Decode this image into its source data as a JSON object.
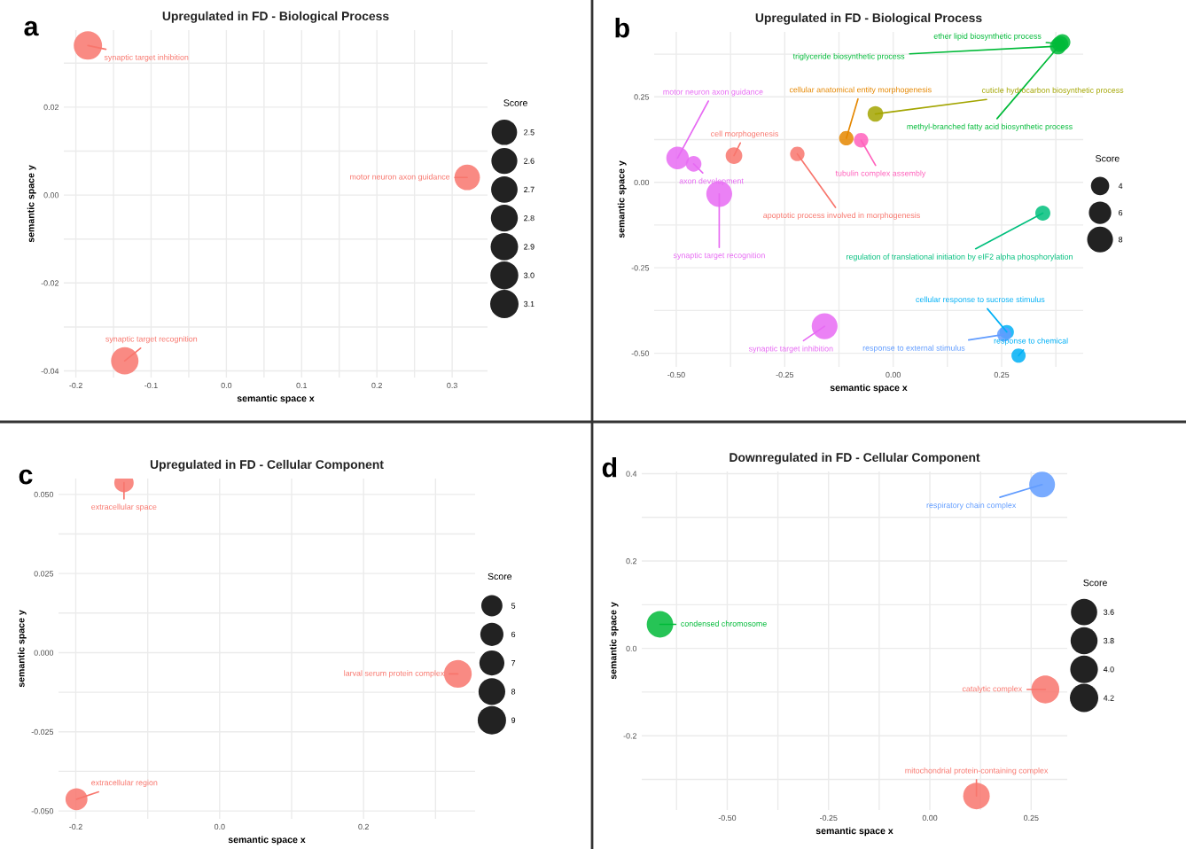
{
  "chart_data": [
    {
      "type": "bubble",
      "title": "Upregulated in FD - Biological Process",
      "xlabel": "semantic space x",
      "ylabel": "semantic space y",
      "legend_title": "Score",
      "x": [
        -0.184,
        -0.135,
        0.32
      ],
      "values": [
        0.034,
        -0.0377,
        0.004
      ],
      "sizes": [
        3.1,
        2.9,
        2.5
      ],
      "colors": [
        "#f8766d",
        "#f8766d",
        "#f8766d"
      ],
      "size_legend": [
        2.5,
        2.6,
        2.7,
        2.8,
        2.9,
        {
          "value": 3.0,
          "label": "3.0"
        },
        3.1
      ],
      "xlim": [
        -0.216,
        0.347
      ],
      "ylim": [
        -0.0415,
        0.0375
      ],
      "xticks": [
        {
          "value": -0.2,
          "label": "-0.2"
        },
        {
          "value": -0.15,
          "label": null
        },
        {
          "value": -0.1,
          "label": "-0.1"
        },
        {
          "value": -0.05,
          "label": null
        },
        {
          "value": 0.0,
          "label": "0.0"
        },
        {
          "value": 0.05,
          "label": null
        },
        {
          "value": 0.1,
          "label": "0.1"
        },
        {
          "value": 0.15,
          "label": null
        },
        {
          "value": 0.2,
          "label": "0.2"
        },
        {
          "value": 0.25,
          "label": null
        },
        {
          "value": 0.3,
          "label": "0.3"
        }
      ],
      "yticks": [
        {
          "value": -0.04,
          "label": "-0.04"
        },
        {
          "value": -0.03,
          "label": null
        },
        {
          "value": -0.02,
          "label": "-0.02"
        },
        {
          "value": -0.01,
          "label": null
        },
        {
          "value": 0.0,
          "label": "0.00"
        },
        {
          "value": 0.01,
          "label": null
        },
        {
          "value": 0.02,
          "label": "0.02"
        },
        {
          "value": 0.03,
          "label": null
        }
      ],
      "grid": true,
      "annotations": [
        "a",
        {
          "text": "synaptic target inhibition",
          "x": -0.184,
          "y": 0.034
        },
        {
          "text": "synaptic target recognition",
          "x": -0.135,
          "y": -0.0377
        },
        {
          "text": "motor neuron axon guidance",
          "x": 0.32,
          "y": 0.004
        }
      ]
    },
    {
      "type": "bubble",
      "title": "Upregulated in FD - Biological Process",
      "xlabel": "semantic space x",
      "ylabel": "semantic space y",
      "legend_title": "Score",
      "x": [
        0.38,
        0.385,
        0.39,
        -0.041,
        -0.108,
        -0.074,
        -0.221,
        -0.367,
        -0.497,
        -0.46,
        -0.401,
        -0.158,
        0.345,
        0.262,
        0.256,
        0.289
      ],
      "values": [
        0.398,
        0.405,
        0.41,
        0.2,
        0.129,
        0.123,
        0.083,
        0.078,
        0.071,
        0.054,
        -0.034,
        -0.421,
        -0.09,
        -0.438,
        -0.445,
        -0.507
      ],
      "sizes": [
        3.1,
        3.1,
        3.1,
        2.9,
        2.5,
        2.5,
        2.5,
        3.3,
        6.1,
        2.9,
        8,
        8,
        2.7,
        2.4,
        2.4,
        2.4
      ],
      "colors": [
        "#00ba38",
        "#00ba38",
        "#00ba38",
        "#a3a500",
        "#e58700",
        "#ff62bc",
        "#f8766d",
        "#f8766d",
        "#e76bf3",
        "#e76bf3",
        "#e76bf3",
        "#e76bf3",
        "#00bf7d",
        "#00b0f6",
        "#619cff",
        "#00b0f6"
      ],
      "size_legend": [
        4,
        6,
        8
      ],
      "xlim": [
        -0.551,
        0.438
      ],
      "ylim": [
        -0.54,
        0.44
      ],
      "xticks": [
        {
          "value": -0.5,
          "label": "-0.50"
        },
        {
          "value": -0.375,
          "label": null
        },
        {
          "value": -0.25,
          "label": "-0.25"
        },
        {
          "value": -0.125,
          "label": null
        },
        {
          "value": 0.0,
          "label": "0.00"
        },
        {
          "value": 0.125,
          "label": null
        },
        {
          "value": 0.25,
          "label": "0.25"
        },
        {
          "value": 0.375,
          "label": null
        }
      ],
      "yticks": [
        {
          "value": -0.5,
          "label": "-0.50"
        },
        {
          "value": -0.375,
          "label": null
        },
        {
          "value": -0.25,
          "label": "-0.25"
        },
        {
          "value": -0.125,
          "label": null
        },
        {
          "value": 0.0,
          "label": "0.00"
        },
        {
          "value": 0.125,
          "label": null
        },
        {
          "value": 0.25,
          "label": "0.25"
        },
        {
          "value": 0.375,
          "label": null
        }
      ],
      "grid": true,
      "annotations": [
        "b",
        {
          "text": "triglyceride biosynthetic process",
          "x": 0.38,
          "y": 0.398
        },
        {
          "text": "ether lipid biosynthetic process",
          "x": 0.385,
          "y": 0.405
        },
        {
          "text": "methyl-branched fatty acid biosynthetic process",
          "x": 0.39,
          "y": 0.41
        },
        {
          "text": "cuticle hydrocarbon biosynthetic process",
          "x": -0.041,
          "y": 0.2
        },
        {
          "text": "cellular anatomical entity morphogenesis",
          "x": -0.108,
          "y": 0.129
        },
        {
          "text": "tubulin complex assembly",
          "x": -0.074,
          "y": 0.123
        },
        {
          "text": "apoptotic process involved in morphogenesis",
          "x": -0.221,
          "y": 0.083
        },
        {
          "text": "cell morphogenesis",
          "x": -0.367,
          "y": 0.078
        },
        {
          "text": "motor neuron axon guidance",
          "x": -0.497,
          "y": 0.071
        },
        {
          "text": "axon development",
          "x": -0.46,
          "y": 0.054
        },
        {
          "text": "synaptic target recognition",
          "x": -0.401,
          "y": -0.034
        },
        {
          "text": "synaptic target inhibition",
          "x": -0.158,
          "y": -0.421
        },
        {
          "text": "regulation of translational initiation by eIF2 alpha phosphorylation",
          "x": 0.345,
          "y": -0.09
        },
        {
          "text": "cellular response to sucrose stimulus",
          "x": 0.262,
          "y": -0.438
        },
        {
          "text": "response to external stimulus",
          "x": 0.256,
          "y": -0.445
        },
        {
          "text": "response to chemical",
          "x": 0.289,
          "y": -0.507
        }
      ]
    },
    {
      "type": "bubble",
      "title": "Upregulated in FD - Cellular Component",
      "xlabel": "semantic space x",
      "ylabel": "semantic space y",
      "legend_title": "Score",
      "x": [
        -0.133,
        0.331,
        -0.199
      ],
      "values": [
        0.0537,
        -0.0067,
        -0.0463
      ],
      "sizes": [
        4.2,
        8.6,
        5.4
      ],
      "colors": [
        "#f8766d",
        "#f8766d",
        "#f8766d"
      ],
      "size_legend": [
        5,
        6,
        7,
        8,
        9
      ],
      "xlim": [
        -0.224,
        0.355
      ],
      "ylim": [
        -0.0525,
        0.055
      ],
      "xticks": [
        {
          "value": -0.2,
          "label": "-0.2"
        },
        {
          "value": -0.1,
          "label": null
        },
        {
          "value": 0.0,
          "label": "0.0"
        },
        {
          "value": 0.1,
          "label": null
        },
        {
          "value": 0.2,
          "label": "0.2"
        },
        {
          "value": 0.3,
          "label": null
        }
      ],
      "yticks": [
        {
          "value": -0.05,
          "label": "-0.050"
        },
        {
          "value": -0.0375,
          "label": null
        },
        {
          "value": -0.025,
          "label": "-0.025"
        },
        {
          "value": -0.0125,
          "label": null
        },
        {
          "value": 0.0,
          "label": "0.000"
        },
        {
          "value": 0.0125,
          "label": null
        },
        {
          "value": 0.025,
          "label": "0.025"
        },
        {
          "value": 0.0375,
          "label": null
        },
        {
          "value": 0.05,
          "label": "0.050"
        }
      ],
      "grid": true,
      "annotations": [
        "c",
        {
          "text": "extracellular space",
          "x": -0.133,
          "y": 0.0537
        },
        {
          "text": "larval serum protein complex",
          "x": 0.331,
          "y": -0.0067
        },
        {
          "text": "extracellular region",
          "x": -0.199,
          "y": -0.0463
        }
      ]
    },
    {
      "type": "bubble",
      "title": "Downregulated in FD - Cellular Component",
      "xlabel": "semantic space x",
      "ylabel": "semantic space y",
      "legend_title": "Score",
      "x": [
        -0.666,
        0.285,
        0.115,
        0.277
      ],
      "values": [
        0.055,
        -0.094,
        -0.338,
        0.375
      ],
      "sizes": [
        3.66,
        4.08,
        3.69,
        3.48
      ],
      "colors": [
        "#00ba38",
        "#f8766d",
        "#f8766d",
        "#619cff"
      ],
      "size_legend": [
        3.6,
        3.8,
        {
          "value": 4.0,
          "label": "4.0"
        },
        4.2
      ],
      "xlim": [
        -0.711,
        0.339
      ],
      "ylim": [
        -0.37,
        0.405
      ],
      "xticks": [
        {
          "value": -0.625,
          "label": null
        },
        {
          "value": -0.5,
          "label": "-0.50"
        },
        {
          "value": -0.375,
          "label": null
        },
        {
          "value": -0.25,
          "label": "-0.25"
        },
        {
          "value": -0.125,
          "label": null
        },
        {
          "value": 0.0,
          "label": "0.00"
        },
        {
          "value": 0.125,
          "label": null
        },
        {
          "value": 0.25,
          "label": "0.25"
        }
      ],
      "yticks": [
        {
          "value": -0.3,
          "label": null
        },
        {
          "value": -0.2,
          "label": "-0.2"
        },
        {
          "value": -0.1,
          "label": null
        },
        {
          "value": 0.0,
          "label": "0.0"
        },
        {
          "value": 0.1,
          "label": null
        },
        {
          "value": 0.2,
          "label": "0.2"
        },
        {
          "value": 0.3,
          "label": null
        },
        {
          "value": 0.4,
          "label": "0.4"
        }
      ],
      "grid": true,
      "annotations": [
        "d",
        {
          "text": "condensed chromosome",
          "x": -0.666,
          "y": 0.055
        },
        {
          "text": "catalytic complex",
          "x": 0.285,
          "y": -0.094
        },
        {
          "text": "mitochondrial protein-containing complex",
          "x": 0.115,
          "y": -0.338
        },
        {
          "text": "respiratory chain complex",
          "x": 0.277,
          "y": 0.375
        }
      ]
    }
  ]
}
